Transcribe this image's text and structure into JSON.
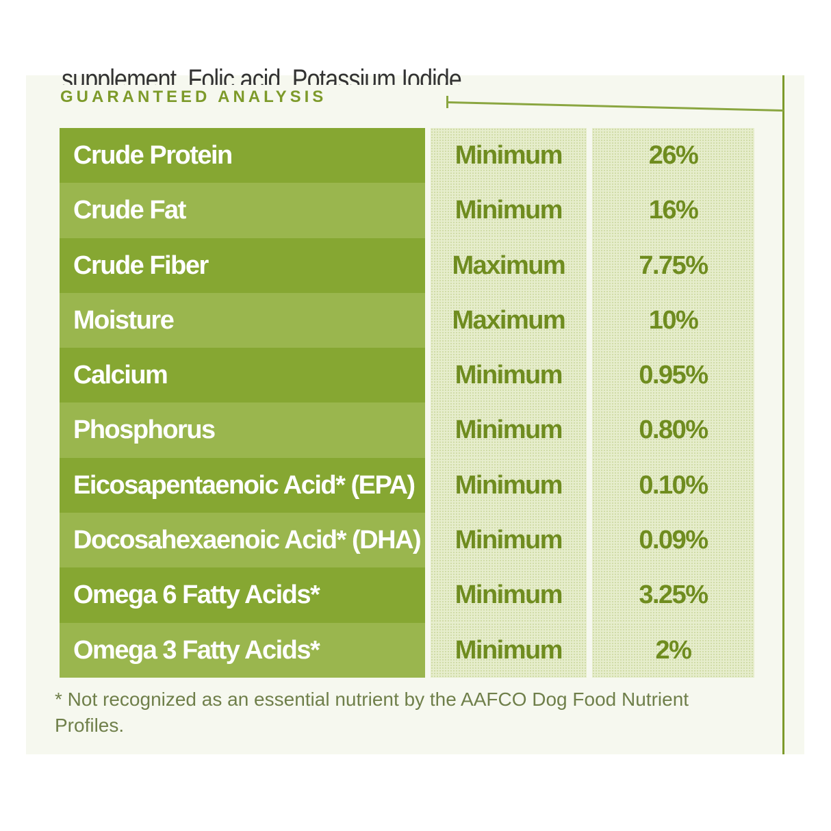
{
  "top_text": "supplement, Folic acid, Potassium Iodide.",
  "heading": "GUARANTEED ANALYSIS",
  "rows": [
    {
      "nutrient": "Crude Protein",
      "type": "Minimum",
      "value": "26%"
    },
    {
      "nutrient": "Crude Fat",
      "type": "Minimum",
      "value": "16%"
    },
    {
      "nutrient": "Crude Fiber",
      "type": "Maximum",
      "value": "7.75%"
    },
    {
      "nutrient": "Moisture",
      "type": "Maximum",
      "value": "10%"
    },
    {
      "nutrient": "Calcium",
      "type": "Minimum",
      "value": "0.95%"
    },
    {
      "nutrient": "Phosphorus",
      "type": "Minimum",
      "value": "0.80%"
    },
    {
      "nutrient": "Eicosapentaenoic Acid* (EPA)",
      "type": "Minimum",
      "value": "0.10%"
    },
    {
      "nutrient": "Docosahexaenoic Acid* (DHA)",
      "type": "Minimum",
      "value": "0.09%"
    },
    {
      "nutrient": "Omega 6 Fatty Acids*",
      "type": "Minimum",
      "value": "3.25%"
    },
    {
      "nutrient": "Omega 3 Fatty Acids*",
      "type": "Minimum",
      "value": "2%"
    }
  ],
  "footnote": "* Not recognized as an essential nutrient by the AAFCO Dog Food Nutrient Profiles.",
  "colors": {
    "label_green": "#86a732",
    "text_green": "#6f8c1f",
    "cell_bg": "#e6edcc"
  }
}
